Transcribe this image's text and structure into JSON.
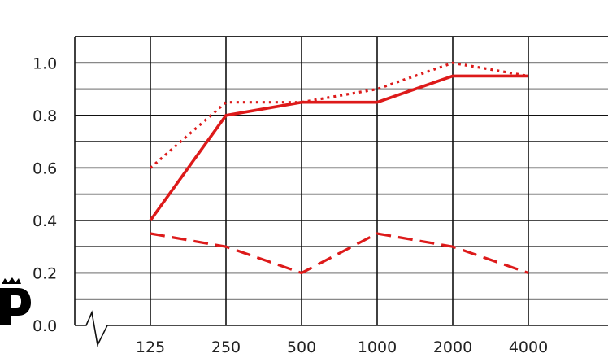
{
  "chart_data": {
    "type": "line",
    "title": "",
    "xlabel": "",
    "ylabel": "",
    "categories": [
      "125",
      "250",
      "500",
      "1000",
      "2000",
      "4000"
    ],
    "y_ticks": [
      "0.0",
      "0.2",
      "0.4",
      "0.6",
      "0.8",
      "1.0"
    ],
    "ylim": [
      0.0,
      1.1
    ],
    "grid": true,
    "series": [
      {
        "style": "solid",
        "color": "#dd1a1a",
        "values": [
          0.4,
          0.8,
          0.85,
          0.85,
          0.95,
          0.95
        ]
      },
      {
        "style": "dotted",
        "color": "#dd1a1a",
        "values": [
          0.6,
          0.85,
          0.85,
          0.9,
          1.0,
          0.95
        ]
      },
      {
        "style": "dashed",
        "color": "#dd1a1a",
        "values": [
          0.35,
          0.3,
          0.2,
          0.35,
          0.3,
          0.2
        ]
      }
    ]
  },
  "logo": {
    "icon": "crown-p-logo-icon",
    "color": "#000000"
  }
}
